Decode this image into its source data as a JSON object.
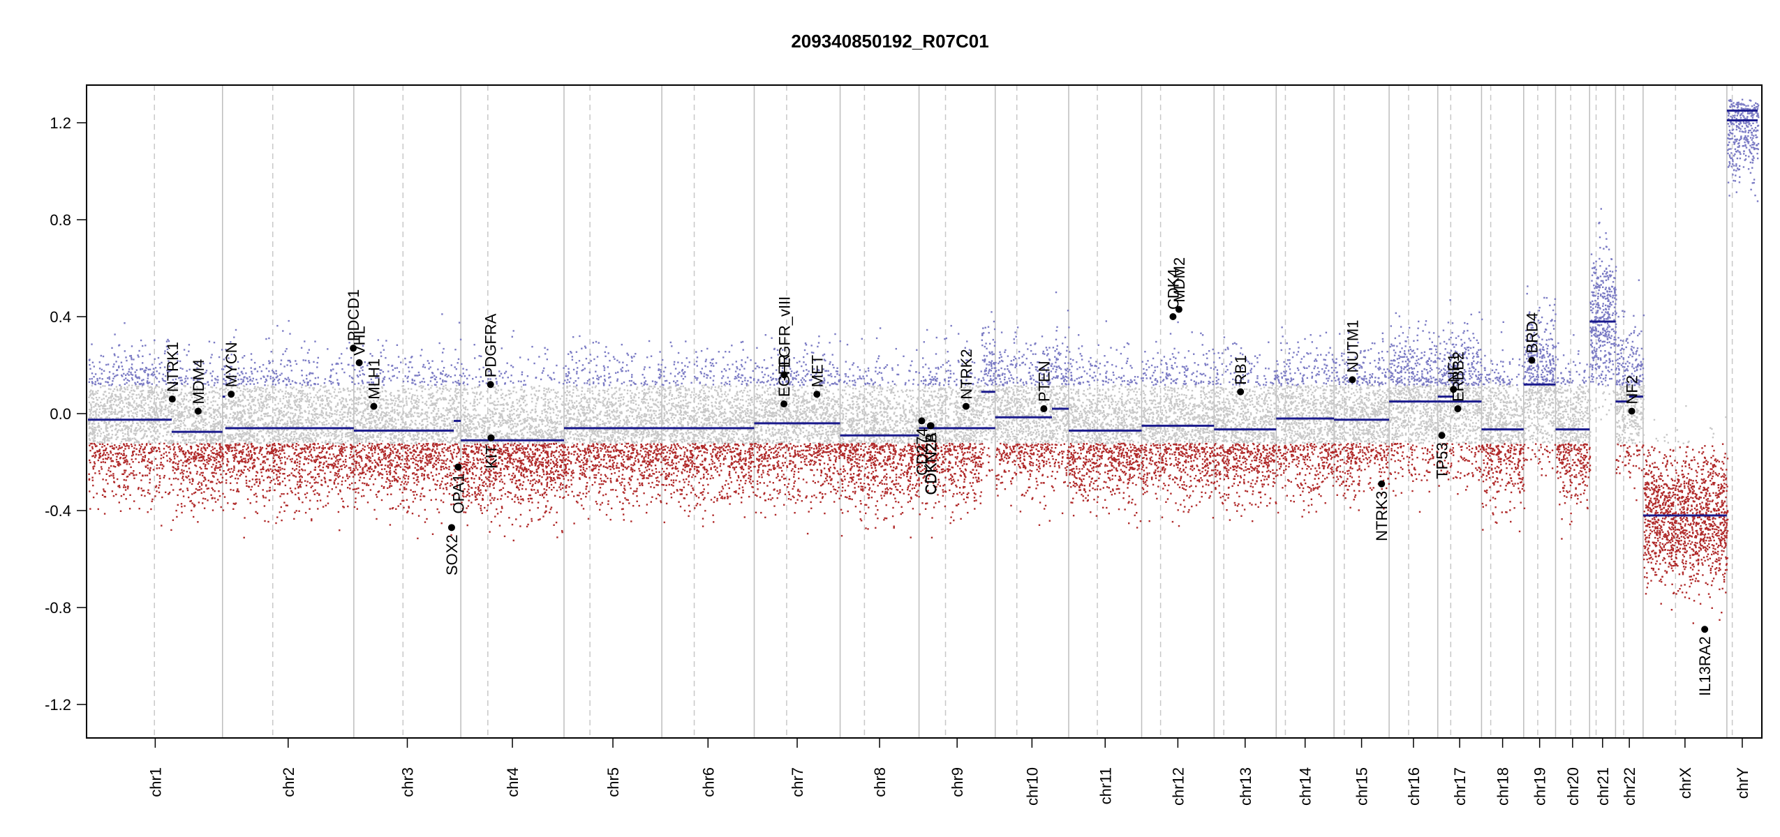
{
  "chart_data": {
    "type": "scatter",
    "title": "209340850192_R07C01",
    "xlabel": "",
    "ylabel": "",
    "ylim": [
      -1.35,
      1.35
    ],
    "yticks": [
      1.2,
      0.8,
      0.4,
      0.0,
      -0.4,
      -0.8,
      -1.2
    ],
    "ytick_labels": [
      "1.2",
      "0.8",
      "0.4",
      "0.0",
      "-0.4",
      "-0.8",
      "-1.2"
    ],
    "grid": false,
    "x_units": "Mb (cumulative genome position)",
    "colors": {
      "gain_points": "#7b7bc4",
      "neutral_points": "#c8c8c8",
      "loss_points": "#b02a2a",
      "segment": "#1a1a8c",
      "gene_marker": "#000000",
      "chrom_border": "#bdbdbd"
    },
    "chromosomes": [
      {
        "name": "chr1",
        "length": 249,
        "centromere": 123
      },
      {
        "name": "chr2",
        "length": 243,
        "centromere": 93
      },
      {
        "name": "chr3",
        "length": 198,
        "centromere": 91
      },
      {
        "name": "chr4",
        "length": 191,
        "centromere": 50
      },
      {
        "name": "chr5",
        "length": 181,
        "centromere": 48
      },
      {
        "name": "chr6",
        "length": 171,
        "centromere": 60
      },
      {
        "name": "chr7",
        "length": 159,
        "centromere": 60
      },
      {
        "name": "chr8",
        "length": 146,
        "centromere": 45
      },
      {
        "name": "chr9",
        "length": 141,
        "centromere": 49
      },
      {
        "name": "chr10",
        "length": 136,
        "centromere": 40
      },
      {
        "name": "chr11",
        "length": 135,
        "centromere": 53
      },
      {
        "name": "chr12",
        "length": 134,
        "centromere": 35
      },
      {
        "name": "chr13",
        "length": 115,
        "centromere": 18
      },
      {
        "name": "chr14",
        "length": 107,
        "centromere": 17
      },
      {
        "name": "chr15",
        "length": 102,
        "centromere": 19
      },
      {
        "name": "chr16",
        "length": 90,
        "centromere": 36
      },
      {
        "name": "chr17",
        "length": 81,
        "centromere": 24
      },
      {
        "name": "chr18",
        "length": 78,
        "centromere": 17
      },
      {
        "name": "chr19",
        "length": 59,
        "centromere": 26
      },
      {
        "name": "chr20",
        "length": 63,
        "centromere": 28
      },
      {
        "name": "chr21",
        "length": 48,
        "centromere": 12
      },
      {
        "name": "chr22",
        "length": 51,
        "centromere": 15
      },
      {
        "name": "chrX",
        "length": 155,
        "centromere": 60
      },
      {
        "name": "chrY",
        "length": 57,
        "centromere": 10
      }
    ],
    "segments": [
      {
        "chrom": "chr1",
        "start": 0,
        "end": 155,
        "value": -0.025
      },
      {
        "chrom": "chr1",
        "start": 155,
        "end": 249,
        "value": -0.075
      },
      {
        "chrom": "chr2",
        "start": 0,
        "end": 5,
        "value": 0.07
      },
      {
        "chrom": "chr2",
        "start": 5,
        "end": 243,
        "value": -0.06
      },
      {
        "chrom": "chr3",
        "start": 0,
        "end": 185,
        "value": -0.07
      },
      {
        "chrom": "chr3",
        "start": 185,
        "end": 198,
        "value": -0.03
      },
      {
        "chrom": "chr4",
        "start": 0,
        "end": 191,
        "value": -0.11
      },
      {
        "chrom": "chr5",
        "start": 0,
        "end": 181,
        "value": -0.06
      },
      {
        "chrom": "chr6",
        "start": 0,
        "end": 171,
        "value": -0.06
      },
      {
        "chrom": "chr7",
        "start": 0,
        "end": 159,
        "value": -0.04
      },
      {
        "chrom": "chr8",
        "start": 0,
        "end": 146,
        "value": -0.09
      },
      {
        "chrom": "chr9",
        "start": 0,
        "end": 141,
        "value": -0.06
      },
      {
        "chrom": "chr9",
        "start": 115,
        "end": 141,
        "value": 0.09
      },
      {
        "chrom": "chr10",
        "start": 0,
        "end": 105,
        "value": -0.015
      },
      {
        "chrom": "chr10",
        "start": 105,
        "end": 136,
        "value": 0.02
      },
      {
        "chrom": "chr11",
        "start": 0,
        "end": 135,
        "value": -0.07
      },
      {
        "chrom": "chr12",
        "start": 0,
        "end": 134,
        "value": -0.05
      },
      {
        "chrom": "chr13",
        "start": 0,
        "end": 115,
        "value": -0.065
      },
      {
        "chrom": "chr14",
        "start": 0,
        "end": 107,
        "value": -0.02
      },
      {
        "chrom": "chr15",
        "start": 0,
        "end": 102,
        "value": -0.025
      },
      {
        "chrom": "chr16",
        "start": 0,
        "end": 90,
        "value": 0.05
      },
      {
        "chrom": "chr17",
        "start": 0,
        "end": 81,
        "value": 0.05
      },
      {
        "chrom": "chr17",
        "start": 0,
        "end": 30,
        "value": 0.07
      },
      {
        "chrom": "chr18",
        "start": 0,
        "end": 78,
        "value": -0.065
      },
      {
        "chrom": "chr19",
        "start": 0,
        "end": 59,
        "value": 0.12
      },
      {
        "chrom": "chr20",
        "start": 0,
        "end": 63,
        "value": -0.065
      },
      {
        "chrom": "chr21",
        "start": 0,
        "end": 48,
        "value": 0.38
      },
      {
        "chrom": "chr22",
        "start": 0,
        "end": 25,
        "value": 0.05
      },
      {
        "chrom": "chr22",
        "start": 25,
        "end": 51,
        "value": 0.07
      },
      {
        "chrom": "chrX",
        "start": 0,
        "end": 155,
        "value": -0.42
      },
      {
        "chrom": "chrY",
        "start": 0,
        "end": 57,
        "value": 1.21
      },
      {
        "chrom": "chrY",
        "start": 0,
        "end": 57,
        "value": 1.25
      }
    ],
    "genes": [
      {
        "name": "NTRK1",
        "chrom": "chr1",
        "pos": 156,
        "value": 0.06
      },
      {
        "name": "MDM4",
        "chrom": "chr1",
        "pos": 204,
        "value": 0.01
      },
      {
        "name": "MYCN",
        "chrom": "chr2",
        "pos": 16,
        "value": 0.08
      },
      {
        "name": "PDCD1",
        "chrom": "chr2",
        "pos": 242,
        "value": 0.27
      },
      {
        "name": "VHL",
        "chrom": "chr3",
        "pos": 10,
        "value": 0.21
      },
      {
        "name": "MLH1",
        "chrom": "chr3",
        "pos": 37,
        "value": 0.03
      },
      {
        "name": "SOX2",
        "chrom": "chr3",
        "pos": 181,
        "value": -0.47
      },
      {
        "name": "OPA1",
        "chrom": "chr3",
        "pos": 193,
        "value": -0.22
      },
      {
        "name": "PDGFRA",
        "chrom": "chr4",
        "pos": 55,
        "value": 0.12
      },
      {
        "name": "KIT",
        "chrom": "chr4",
        "pos": 56,
        "value": -0.1
      },
      {
        "name": "EGFR",
        "chrom": "chr7",
        "pos": 55,
        "value": 0.04
      },
      {
        "name": "EGFR_vIII",
        "chrom": "chr7",
        "pos": 55.5,
        "value": 0.16
      },
      {
        "name": "MET",
        "chrom": "chr7",
        "pos": 116,
        "value": 0.08
      },
      {
        "name": "CD274",
        "chrom": "chr9",
        "pos": 5,
        "value": -0.03
      },
      {
        "name": "CDKN2A",
        "chrom": "chr9",
        "pos": 21,
        "value": -0.05
      },
      {
        "name": "CDKN2B",
        "chrom": "chr9",
        "pos": 22,
        "value": -0.05
      },
      {
        "name": "NTRK2",
        "chrom": "chr9",
        "pos": 87,
        "value": 0.03
      },
      {
        "name": "PTEN",
        "chrom": "chr10",
        "pos": 90,
        "value": 0.02
      },
      {
        "name": "CDK4",
        "chrom": "chr12",
        "pos": 58,
        "value": 0.4
      },
      {
        "name": "MDM2",
        "chrom": "chr12",
        "pos": 69,
        "value": 0.43
      },
      {
        "name": "RB1",
        "chrom": "chr13",
        "pos": 49,
        "value": 0.09
      },
      {
        "name": "NUTM1",
        "chrom": "chr15",
        "pos": 34,
        "value": 0.14
      },
      {
        "name": "NTRK3",
        "chrom": "chr15",
        "pos": 88,
        "value": -0.29
      },
      {
        "name": "TP53",
        "chrom": "chr17",
        "pos": 7.5,
        "value": -0.09
      },
      {
        "name": "NF1",
        "chrom": "chr17",
        "pos": 29,
        "value": 0.1
      },
      {
        "name": "ERBB2",
        "chrom": "chr17",
        "pos": 37,
        "value": 0.02
      },
      {
        "name": "BRD4",
        "chrom": "chr19",
        "pos": 15,
        "value": 0.22
      },
      {
        "name": "NF2",
        "chrom": "chr22",
        "pos": 30,
        "value": 0.01
      },
      {
        "name": "IL13RA2",
        "chrom": "chrX",
        "pos": 114,
        "value": -0.89
      }
    ]
  }
}
